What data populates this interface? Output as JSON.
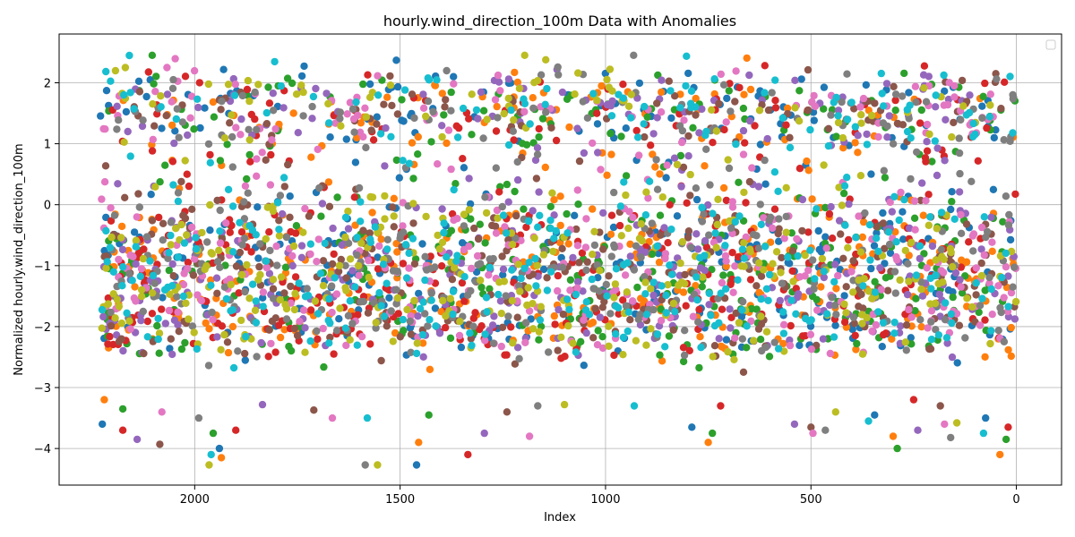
{
  "chart_data": {
    "type": "scatter",
    "title": "hourly.wind_direction_100m Data with Anomalies",
    "xlabel": "Index",
    "ylabel": "Normalized hourly.wind_direction_100m",
    "xlim": [
      2330,
      -110
    ],
    "ylim": [
      -4.6,
      2.8
    ],
    "x_inverted": true,
    "grid": true,
    "legend": {
      "placement": "top-right",
      "entries": []
    },
    "xticks": [
      {
        "value": 2000,
        "label": "2000"
      },
      {
        "value": 1500,
        "label": "1500"
      },
      {
        "value": 1000,
        "label": "1000"
      },
      {
        "value": 500,
        "label": "500"
      },
      {
        "value": 0,
        "label": "0"
      }
    ],
    "yticks": [
      {
        "value": 2,
        "label": "2"
      },
      {
        "value": 1,
        "label": "1"
      },
      {
        "value": 0,
        "label": "0"
      },
      {
        "value": -1,
        "label": "−1"
      },
      {
        "value": -2,
        "label": "−2"
      },
      {
        "value": -3,
        "label": "−3"
      },
      {
        "value": -4,
        "label": "−4"
      }
    ],
    "colors": [
      "#1f77b4",
      "#ff7f0e",
      "#2ca02c",
      "#d62728",
      "#9467bd",
      "#8c564b",
      "#e377c2",
      "#7f7f7f",
      "#bcbd22",
      "#17becf"
    ],
    "series_count": 10,
    "index_range": [
      0,
      2230
    ],
    "dense_band": [
      -2.5,
      2.2
    ],
    "anomalies": [
      {
        "x": 2225,
        "y": -3.6
      },
      {
        "x": 2220,
        "y": -3.2
      },
      {
        "x": 2175,
        "y": -3.35
      },
      {
        "x": 2175,
        "y": -3.7
      },
      {
        "x": 2140,
        "y": -3.85
      },
      {
        "x": 2085,
        "y": -3.93
      },
      {
        "x": 2080,
        "y": -3.4
      },
      {
        "x": 1990,
        "y": -3.5
      },
      {
        "x": 1965,
        "y": -4.27
      },
      {
        "x": 1960,
        "y": -4.1
      },
      {
        "x": 1940,
        "y": -4.0
      },
      {
        "x": 1935,
        "y": -4.15
      },
      {
        "x": 1955,
        "y": -3.75
      },
      {
        "x": 1900,
        "y": -3.7
      },
      {
        "x": 1835,
        "y": -3.28
      },
      {
        "x": 1710,
        "y": -3.37
      },
      {
        "x": 1665,
        "y": -3.5
      },
      {
        "x": 1585,
        "y": -4.27
      },
      {
        "x": 1555,
        "y": -4.27
      },
      {
        "x": 1580,
        "y": -3.5
      },
      {
        "x": 1460,
        "y": -4.27
      },
      {
        "x": 1455,
        "y": -3.9
      },
      {
        "x": 1430,
        "y": -3.45
      },
      {
        "x": 1335,
        "y": -4.1
      },
      {
        "x": 1295,
        "y": -3.75
      },
      {
        "x": 1240,
        "y": -3.4
      },
      {
        "x": 1185,
        "y": -3.8
      },
      {
        "x": 1165,
        "y": -3.3
      },
      {
        "x": 1100,
        "y": -3.28
      },
      {
        "x": 930,
        "y": -3.3
      },
      {
        "x": 790,
        "y": -3.65
      },
      {
        "x": 750,
        "y": -3.9
      },
      {
        "x": 740,
        "y": -3.75
      },
      {
        "x": 720,
        "y": -3.3
      },
      {
        "x": 540,
        "y": -3.6
      },
      {
        "x": 500,
        "y": -3.65
      },
      {
        "x": 495,
        "y": -3.75
      },
      {
        "x": 465,
        "y": -3.7
      },
      {
        "x": 440,
        "y": -3.4
      },
      {
        "x": 360,
        "y": -3.55
      },
      {
        "x": 345,
        "y": -3.45
      },
      {
        "x": 300,
        "y": -3.8
      },
      {
        "x": 290,
        "y": -4.0
      },
      {
        "x": 250,
        "y": -3.2
      },
      {
        "x": 240,
        "y": -3.7
      },
      {
        "x": 185,
        "y": -3.3
      },
      {
        "x": 175,
        "y": -3.6
      },
      {
        "x": 160,
        "y": -3.82
      },
      {
        "x": 145,
        "y": -3.58
      },
      {
        "x": 80,
        "y": -3.75
      },
      {
        "x": 75,
        "y": -3.5
      },
      {
        "x": 40,
        "y": -4.1
      },
      {
        "x": 25,
        "y": -3.85
      },
      {
        "x": 20,
        "y": -3.65
      }
    ]
  }
}
